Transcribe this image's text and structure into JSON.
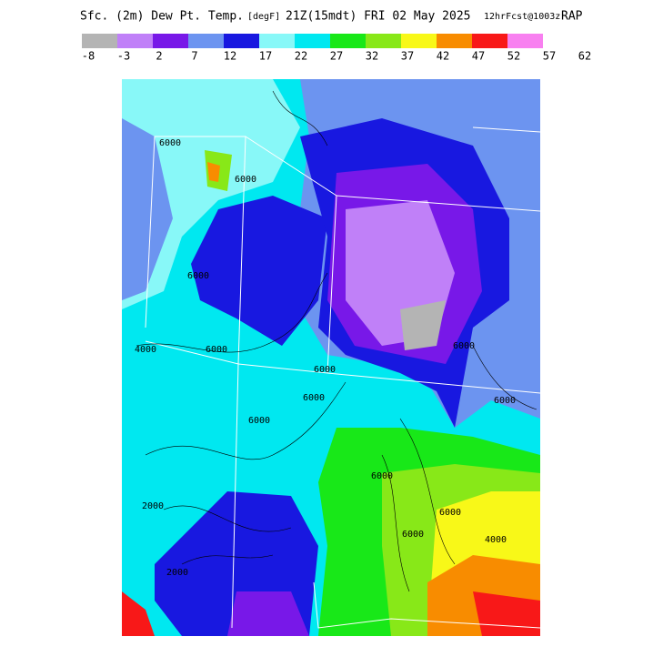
{
  "header": {
    "title": "Sfc. (2m) Dew Pt. Temp.",
    "units": "[degF]",
    "valid": "21Z(15mdt) FRI 02 May 2025",
    "forecast": "12hrFcst@1003z",
    "model": "RAP"
  },
  "legend": {
    "colors": [
      "#b4b4b4",
      "#c080f8",
      "#7818e8",
      "#6c94f0",
      "#1818e0",
      "#88f8f8",
      "#00e8f0",
      "#18e818",
      "#88e818",
      "#f8f818",
      "#f88c00",
      "#f81818",
      "#f880f0"
    ],
    "ticks": [
      -8,
      -3,
      2,
      7,
      12,
      17,
      22,
      27,
      32,
      37,
      42,
      47,
      52,
      57,
      62
    ]
  },
  "map": {
    "contour_labels": [
      "6000",
      "6000",
      "4000",
      "6000",
      "6000",
      "6000",
      "2000",
      "2000",
      "6000",
      "6000",
      "6000",
      "6000",
      "4000",
      "6000",
      "6000",
      "6000"
    ]
  }
}
